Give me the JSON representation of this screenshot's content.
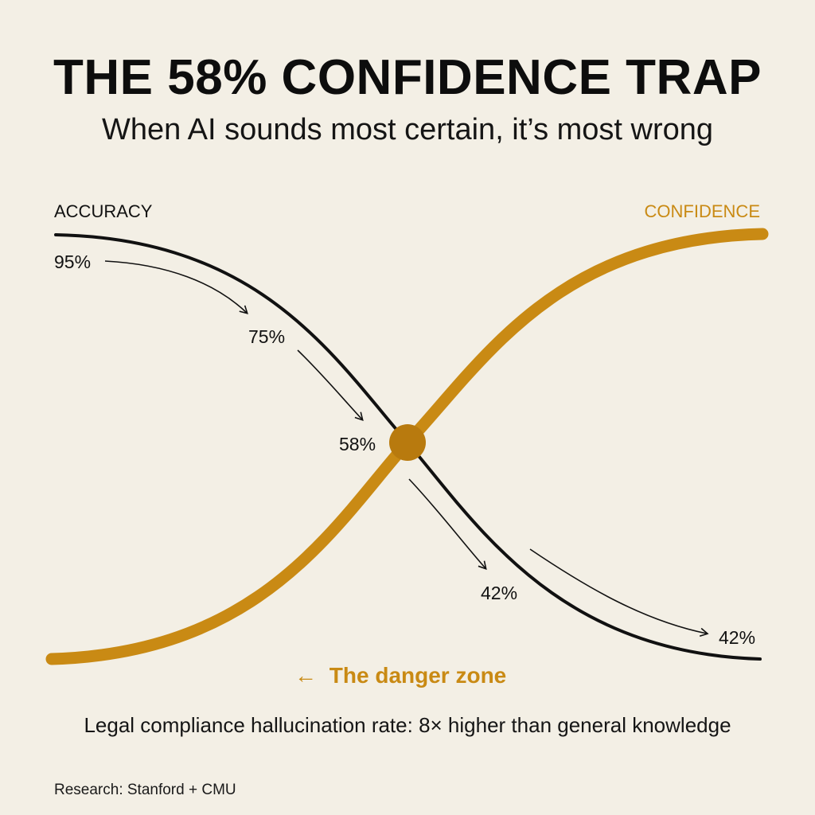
{
  "title": "THE 58% CONFIDENCE TRAP",
  "subtitle": "When AI sounds most certain, it’s most wrong",
  "caption": "Legal compliance hallucination rate: 8× higher than general knowledge",
  "source": "Research: Stanford + CMU",
  "colors": {
    "accuracy": "#111111",
    "confidence": "#c98a14",
    "background": "#f3efe5"
  },
  "chart_data": {
    "type": "line",
    "series": [
      {
        "name": "ACCURACY",
        "color": "#111111",
        "shape": "decreasing-sigmoid"
      },
      {
        "name": "CONFIDENCE",
        "color": "#c98a14",
        "shape": "increasing-sigmoid"
      }
    ],
    "annotations": [
      {
        "text": "95%"
      },
      {
        "text": "75%"
      },
      {
        "text": "58%"
      },
      {
        "text": "42%"
      },
      {
        "text": "42%"
      }
    ],
    "crossover_marker": "58%",
    "danger_zone": {
      "arrow": "←",
      "text": "The danger zone"
    },
    "grid": false,
    "axes_visible": false
  }
}
